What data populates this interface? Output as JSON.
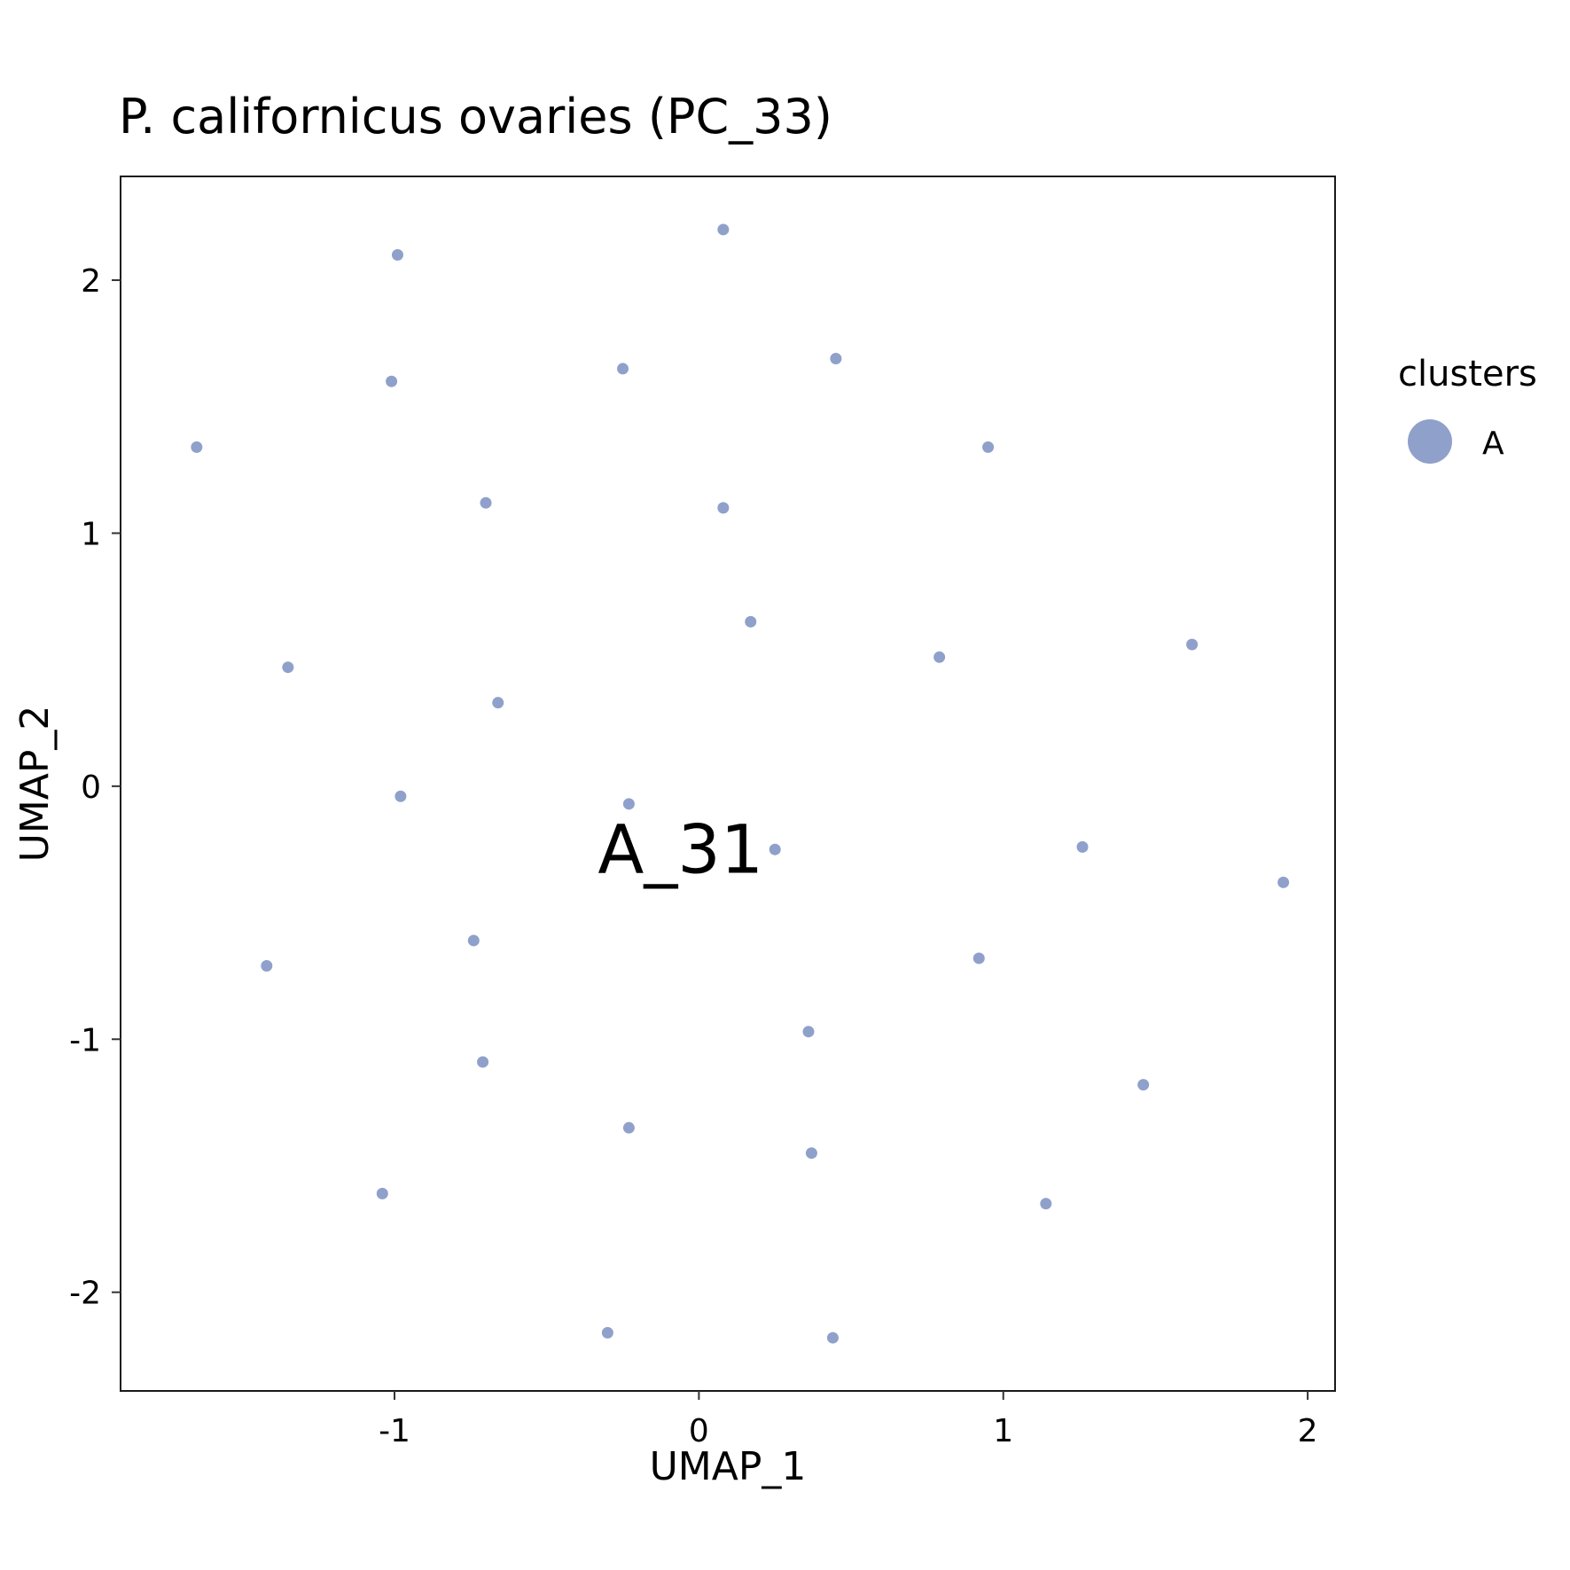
{
  "chart_data": {
    "type": "scatter",
    "title": "P. californicus ovaries (PC_33)",
    "xlabel": "UMAP_1",
    "ylabel": "UMAP_2",
    "xlim": [
      -1.9,
      2.09
    ],
    "ylim": [
      -2.39,
      2.41
    ],
    "x_ticks": [
      -1,
      0,
      1,
      2
    ],
    "y_ticks": [
      -2,
      -1,
      0,
      1,
      2
    ],
    "x_tick_labels": [
      "-1",
      "0",
      "1",
      "2"
    ],
    "y_tick_labels": [
      "-2",
      "-1",
      "0",
      "1",
      "2"
    ],
    "grid": false,
    "legend": {
      "title": "clusters",
      "position": "right",
      "entries": [
        {
          "label": "A",
          "color": "#8FA0CB"
        }
      ]
    },
    "point_color": "#8FA0CB",
    "annotations": [
      {
        "text": "A_31",
        "x": -0.06,
        "y": -0.25
      }
    ],
    "series": [
      {
        "name": "A",
        "points": [
          {
            "x": 0.08,
            "y": 2.2
          },
          {
            "x": -0.99,
            "y": 2.1
          },
          {
            "x": -0.25,
            "y": 1.65
          },
          {
            "x": 0.45,
            "y": 1.69
          },
          {
            "x": -1.01,
            "y": 1.6
          },
          {
            "x": -1.65,
            "y": 1.34
          },
          {
            "x": 0.95,
            "y": 1.34
          },
          {
            "x": -0.7,
            "y": 1.12
          },
          {
            "x": 0.08,
            "y": 1.1
          },
          {
            "x": 0.17,
            "y": 0.65
          },
          {
            "x": 1.62,
            "y": 0.56
          },
          {
            "x": 0.79,
            "y": 0.51
          },
          {
            "x": -1.35,
            "y": 0.47
          },
          {
            "x": -0.66,
            "y": 0.33
          },
          {
            "x": -0.98,
            "y": -0.04
          },
          {
            "x": -0.23,
            "y": -0.07
          },
          {
            "x": 0.25,
            "y": -0.25
          },
          {
            "x": 1.26,
            "y": -0.24
          },
          {
            "x": 1.92,
            "y": -0.38
          },
          {
            "x": -0.74,
            "y": -0.61
          },
          {
            "x": -1.42,
            "y": -0.71
          },
          {
            "x": 0.92,
            "y": -0.68
          },
          {
            "x": 0.36,
            "y": -0.97
          },
          {
            "x": -0.71,
            "y": -1.09
          },
          {
            "x": 1.46,
            "y": -1.18
          },
          {
            "x": -0.23,
            "y": -1.35
          },
          {
            "x": 0.37,
            "y": -1.45
          },
          {
            "x": -1.04,
            "y": -1.61
          },
          {
            "x": 1.14,
            "y": -1.65
          },
          {
            "x": -0.3,
            "y": -2.16
          },
          {
            "x": 0.44,
            "y": -2.18
          }
        ]
      }
    ]
  }
}
